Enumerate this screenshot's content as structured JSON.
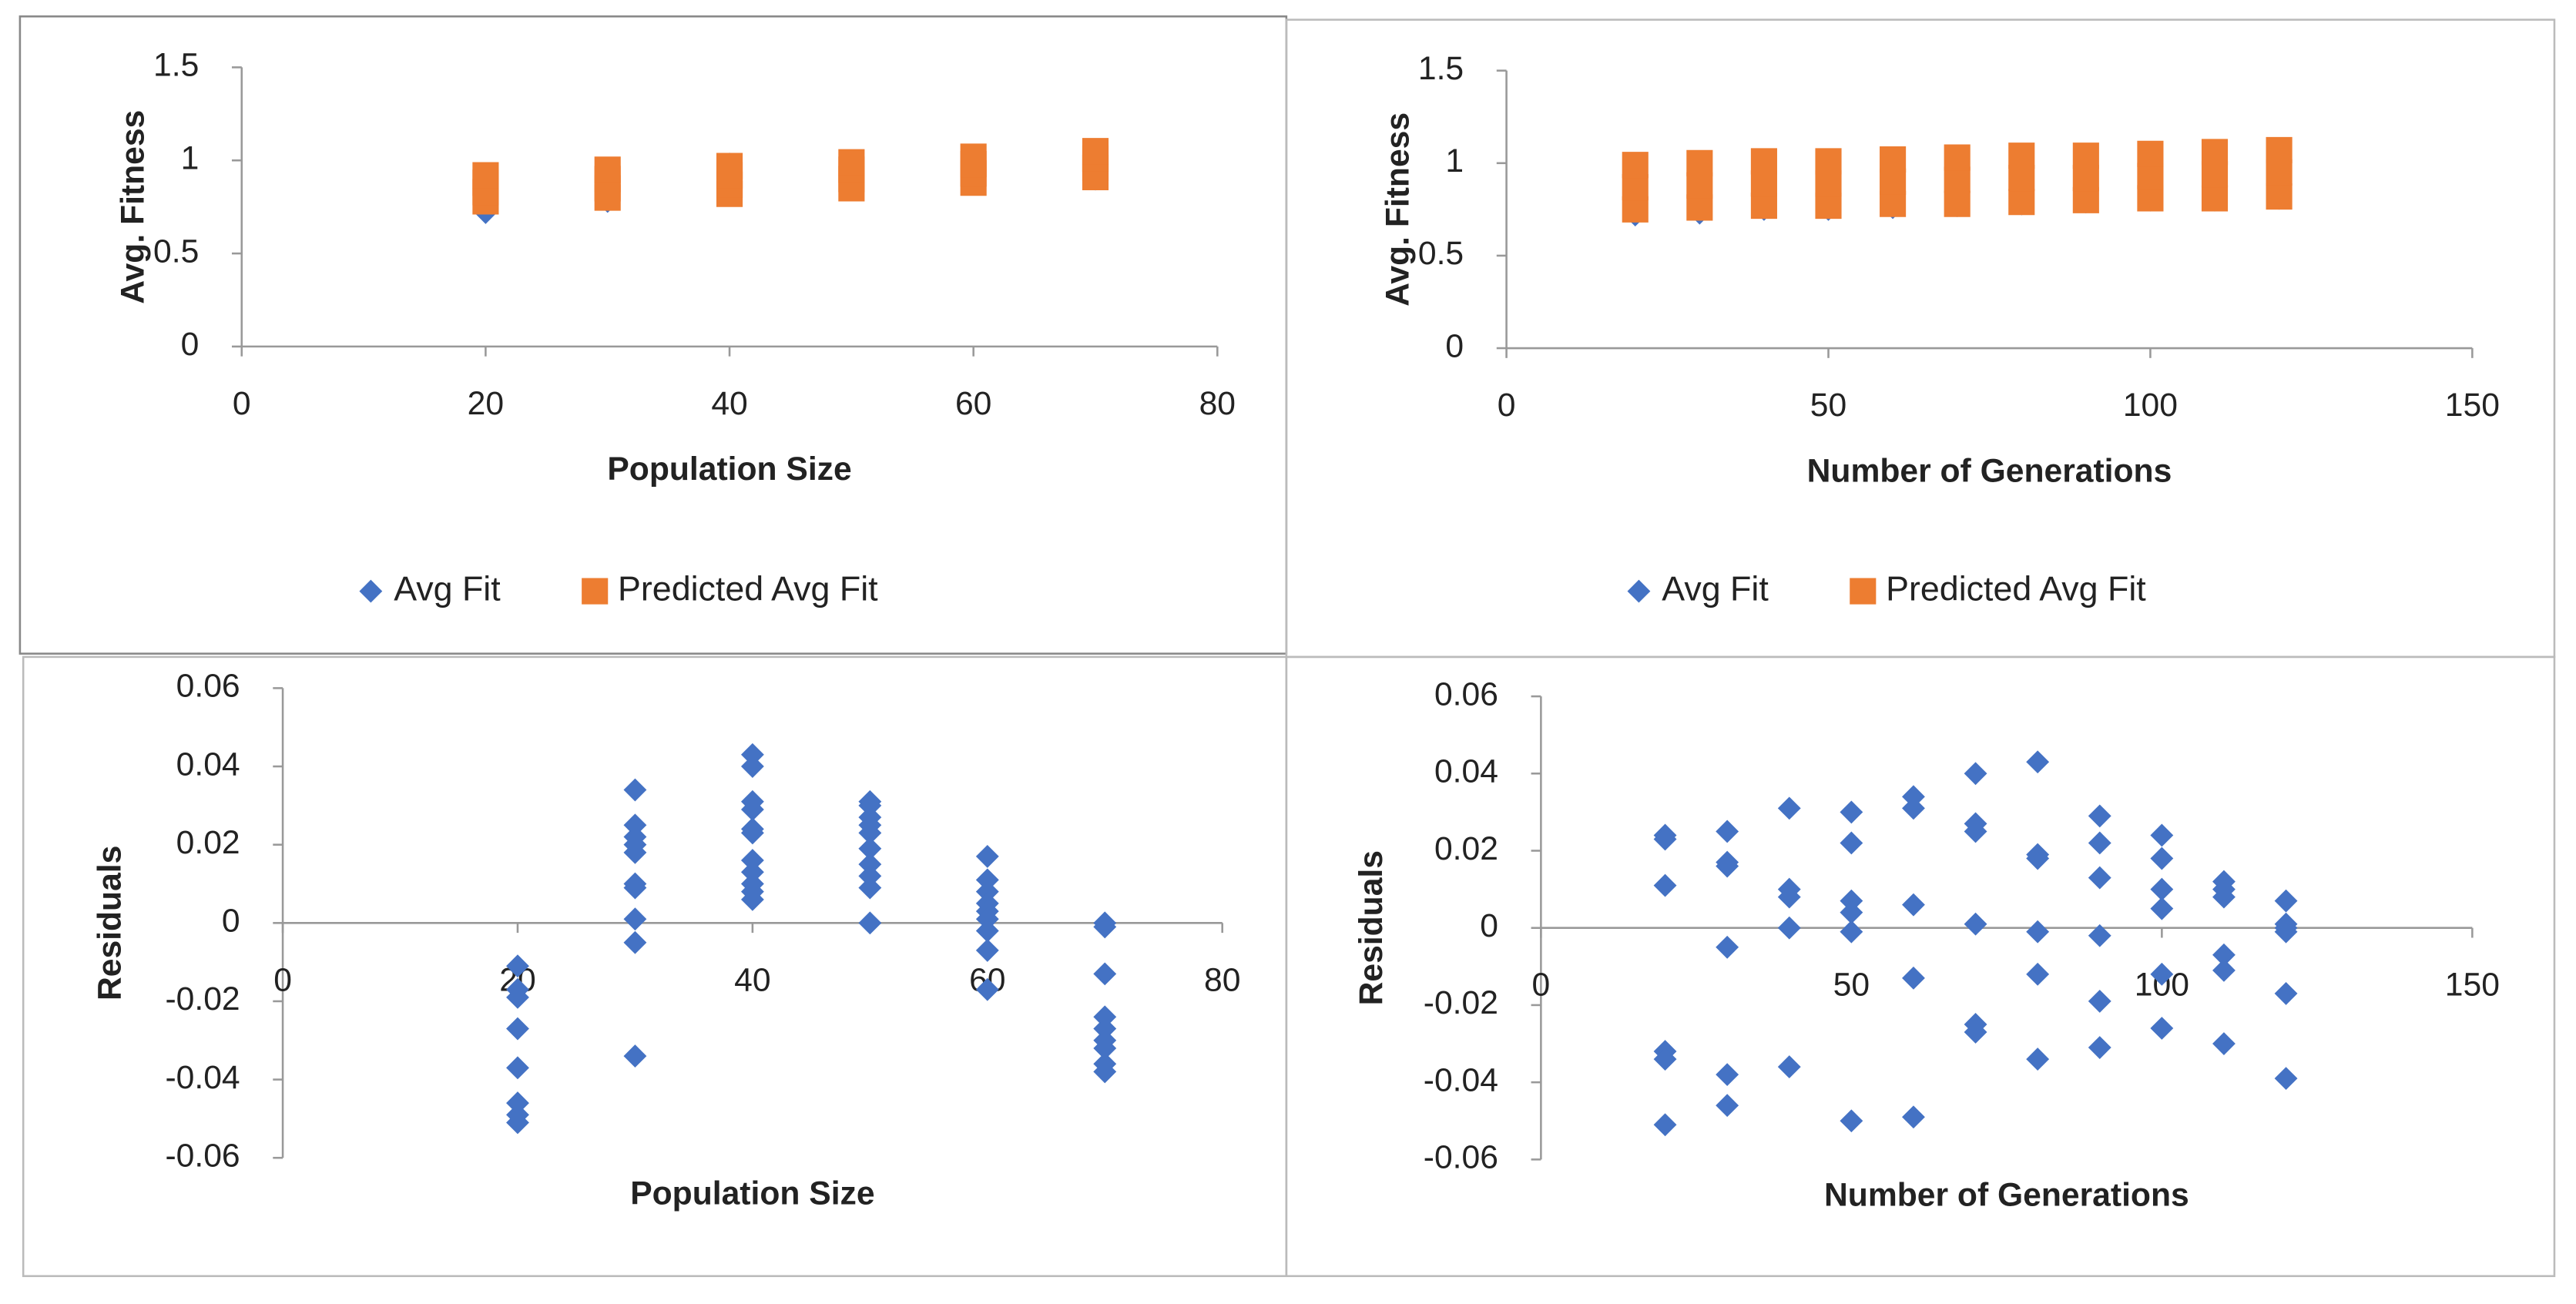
{
  "chart_data": [
    {
      "type": "scatter",
      "xlabel": "Population Size",
      "ylabel": "Avg. Fitness",
      "xlim": [
        0,
        80
      ],
      "xticks": [
        0,
        20,
        40,
        60,
        80
      ],
      "ylim": [
        0,
        1.5
      ],
      "yticks": [
        0,
        0.5,
        1,
        1.5
      ],
      "legend": "bottom",
      "series": [
        {
          "name": "Avg Fit",
          "color": "#4472c4",
          "marker": "diamond",
          "x": [
            20,
            20,
            30,
            30,
            40,
            40,
            50,
            50,
            60,
            60,
            70,
            70
          ],
          "values": [
            0.72,
            0.8,
            0.78,
            0.9,
            0.85,
            0.98,
            0.87,
            0.95,
            0.9,
            1.0,
            0.9,
            1.0
          ]
        },
        {
          "name": "Predicted Avg Fit",
          "color": "#ed7d31",
          "marker": "square",
          "x": [
            20,
            20,
            20,
            20,
            30,
            30,
            30,
            30,
            40,
            40,
            40,
            40,
            50,
            50,
            50,
            50,
            60,
            60,
            60,
            60,
            70,
            70,
            70,
            70
          ],
          "values": [
            0.78,
            0.83,
            0.88,
            0.92,
            0.8,
            0.85,
            0.9,
            0.95,
            0.82,
            0.87,
            0.92,
            0.97,
            0.85,
            0.9,
            0.95,
            0.99,
            0.88,
            0.93,
            0.98,
            1.02,
            0.91,
            0.96,
            1.01,
            1.05
          ]
        }
      ]
    },
    {
      "type": "scatter",
      "xlabel": "Number of Generations",
      "ylabel": "Avg. Fitness",
      "xlim": [
        0,
        150
      ],
      "xticks": [
        0,
        50,
        100,
        150
      ],
      "ylim": [
        0,
        1.5
      ],
      "yticks": [
        0,
        0.5,
        1,
        1.5
      ],
      "legend": "bottom",
      "series": [
        {
          "name": "Avg Fit",
          "color": "#4472c4",
          "marker": "diamond",
          "x": [
            20,
            30,
            40,
            50,
            60,
            70,
            80,
            90,
            100,
            110,
            120
          ],
          "values": [
            0.72,
            0.73,
            0.75,
            0.75,
            0.76,
            0.77,
            0.78,
            0.79,
            0.8,
            0.8,
            0.81
          ]
        },
        {
          "name": "Predicted Avg Fit",
          "color": "#ed7d31",
          "marker": "square",
          "x": [
            20,
            20,
            20,
            30,
            30,
            30,
            40,
            40,
            40,
            50,
            50,
            50,
            60,
            60,
            60,
            70,
            70,
            70,
            80,
            80,
            80,
            90,
            90,
            90,
            100,
            100,
            100,
            110,
            110,
            110,
            120,
            120,
            120
          ],
          "values": [
            0.75,
            0.87,
            0.99,
            0.76,
            0.88,
            1.0,
            0.77,
            0.89,
            1.01,
            0.77,
            0.89,
            1.01,
            0.78,
            0.9,
            1.02,
            0.78,
            0.91,
            1.03,
            0.79,
            0.92,
            1.04,
            0.8,
            0.92,
            1.04,
            0.81,
            0.93,
            1.05,
            0.81,
            0.94,
            1.06,
            0.82,
            0.95,
            1.07
          ]
        }
      ]
    },
    {
      "type": "scatter",
      "xlabel": "Population Size",
      "ylabel": "Residuals",
      "xlim": [
        0,
        80
      ],
      "xticks": [
        0,
        20,
        40,
        60,
        80
      ],
      "ylim": [
        -0.06,
        0.06
      ],
      "yticks": [
        -0.06,
        -0.04,
        -0.02,
        0,
        0.02,
        0.04,
        0.06
      ],
      "series": [
        {
          "color": "#4472c4",
          "marker": "diamond",
          "x": [
            20,
            20,
            20,
            20,
            20,
            20,
            20,
            20,
            30,
            30,
            30,
            30,
            30,
            30,
            30,
            30,
            30,
            30,
            40,
            40,
            40,
            40,
            40,
            40,
            40,
            40,
            40,
            40,
            40,
            50,
            50,
            50,
            50,
            50,
            50,
            50,
            50,
            50,
            50,
            60,
            60,
            60,
            60,
            60,
            60,
            60,
            60,
            60,
            70,
            70,
            70,
            70,
            70,
            70,
            70,
            70,
            70
          ],
          "values": [
            -0.011,
            -0.017,
            -0.019,
            -0.027,
            -0.037,
            -0.046,
            -0.049,
            -0.051,
            0.034,
            0.025,
            0.022,
            0.02,
            0.018,
            0.01,
            0.009,
            0.001,
            -0.005,
            -0.034,
            0.043,
            0.04,
            0.031,
            0.029,
            0.024,
            0.023,
            0.016,
            0.013,
            0.01,
            0.008,
            0.006,
            0.031,
            0.03,
            0.027,
            0.025,
            0.023,
            0.019,
            0.015,
            0.012,
            0.009,
            0,
            0.017,
            0.011,
            0.008,
            0.005,
            0.003,
            0.001,
            -0.002,
            -0.007,
            -0.017,
            0,
            -0.001,
            -0.013,
            -0.024,
            -0.027,
            -0.03,
            -0.032,
            -0.036,
            -0.038
          ]
        }
      ]
    },
    {
      "type": "scatter",
      "xlabel": "Number of Generations",
      "ylabel": "Residuals",
      "xlim": [
        0,
        150
      ],
      "xticks": [
        0,
        50,
        100,
        150
      ],
      "ylim": [
        -0.06,
        0.06
      ],
      "yticks": [
        -0.06,
        -0.04,
        -0.02,
        0,
        0.02,
        0.04,
        0.06
      ],
      "series": [
        {
          "color": "#4472c4",
          "marker": "diamond",
          "x": [
            20,
            20,
            20,
            20,
            20,
            20,
            30,
            30,
            30,
            30,
            30,
            30,
            40,
            40,
            40,
            40,
            40,
            50,
            50,
            50,
            50,
            50,
            50,
            60,
            60,
            60,
            60,
            60,
            70,
            70,
            70,
            70,
            70,
            70,
            80,
            80,
            80,
            80,
            80,
            80,
            90,
            90,
            90,
            90,
            90,
            90,
            100,
            100,
            100,
            100,
            100,
            100,
            110,
            110,
            110,
            110,
            110,
            110,
            120,
            120,
            120,
            120,
            120,
            120
          ],
          "values": [
            0.024,
            0.023,
            0.011,
            -0.032,
            -0.034,
            -0.051,
            0.025,
            0.017,
            0.016,
            -0.005,
            -0.038,
            -0.046,
            0.031,
            0.01,
            0.008,
            0,
            -0.036,
            0.03,
            0.022,
            0.007,
            0.004,
            -0.001,
            -0.05,
            0.034,
            0.031,
            0.006,
            -0.013,
            -0.049,
            0.04,
            0.027,
            0.025,
            0.001,
            -0.025,
            -0.027,
            0.043,
            0.019,
            0.018,
            -0.001,
            -0.012,
            -0.034,
            0.029,
            0.022,
            0.013,
            -0.002,
            -0.019,
            -0.031,
            0.024,
            0.018,
            0.01,
            0.005,
            -0.012,
            -0.026,
            0.012,
            0.01,
            0.008,
            -0.007,
            -0.011,
            -0.03,
            0.007,
            0.001,
            0,
            -0.001,
            -0.017,
            -0.039
          ]
        }
      ]
    }
  ]
}
